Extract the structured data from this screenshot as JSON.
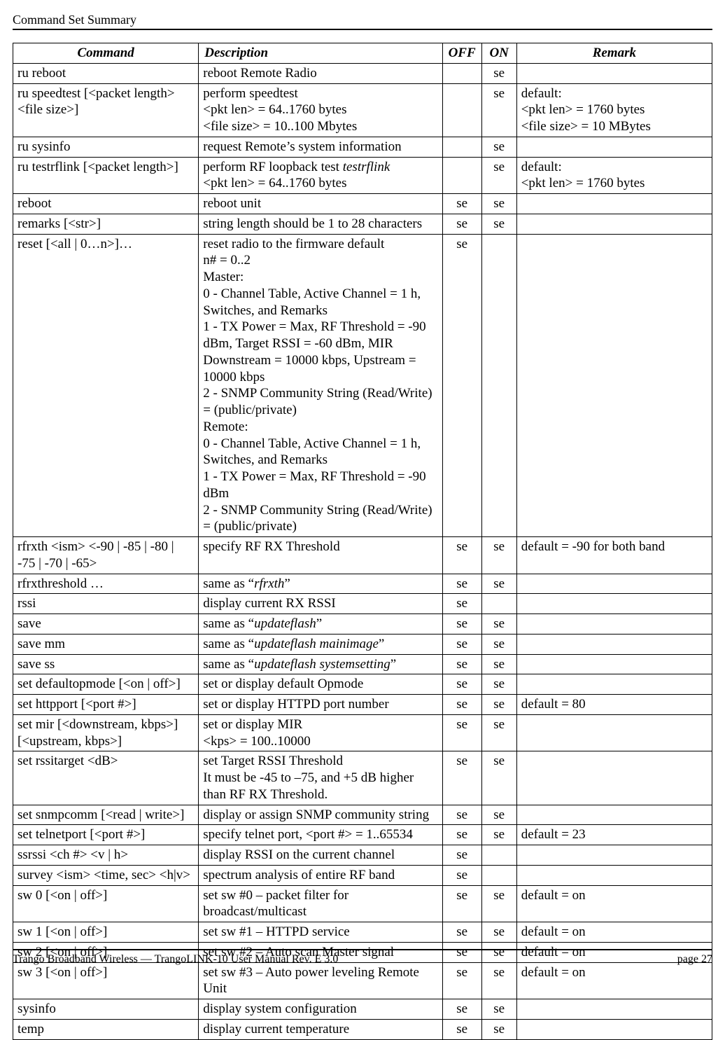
{
  "header": {
    "title": "Command Set Summary"
  },
  "footer": {
    "left": "Trango Broadband Wireless — TrangoLINK-10 User Manual Rev. E 3.0",
    "right": "page 27"
  },
  "columns": {
    "command": "Command",
    "description": "Description",
    "off": "OFF",
    "on": "ON",
    "remark": "Remark"
  },
  "rows": [
    {
      "command": "ru reboot",
      "description_parts": [
        {
          "text": "reboot Remote Radio"
        }
      ],
      "off": "",
      "on": "se",
      "remark_parts": []
    },
    {
      "command": "ru speedtest  [<packet length> <file size>]",
      "description_parts": [
        {
          "text": "perform speedtest"
        },
        {
          "br": true
        },
        {
          "text": "<pkt len> = 64..1760 bytes"
        },
        {
          "br": true
        },
        {
          "text": "<file size> = 10..100 Mbytes"
        }
      ],
      "off": "",
      "on": "se",
      "remark_parts": [
        {
          "text": "default:"
        },
        {
          "br": true
        },
        {
          "text": "<pkt len> = 1760 bytes"
        },
        {
          "br": true
        },
        {
          "text": "<file size> = 10 MBytes"
        }
      ]
    },
    {
      "command": "ru sysinfo",
      "description_parts": [
        {
          "text": "request Remote’s system information"
        }
      ],
      "off": "",
      "on": "se",
      "remark_parts": []
    },
    {
      "command": "ru testrflink [<packet length>]",
      "description_parts": [
        {
          "text": "perform RF loopback test "
        },
        {
          "text": "testrflink",
          "ital": true
        },
        {
          "br": true
        },
        {
          "text": "<pkt len> = 64..1760 bytes"
        }
      ],
      "off": "",
      "on": "se",
      "remark_parts": [
        {
          "text": "default:"
        },
        {
          "br": true
        },
        {
          "text": "<pkt len> = 1760 bytes"
        }
      ]
    },
    {
      "command": "reboot",
      "description_parts": [
        {
          "text": "reboot unit"
        }
      ],
      "off": "se",
      "on": "se",
      "remark_parts": []
    },
    {
      "command": "remarks [<str>]",
      "description_parts": [
        {
          "text": "string length should be 1 to 28 characters"
        }
      ],
      "off": "se",
      "on": "se",
      "remark_parts": []
    },
    {
      "command": "reset [<all | 0…n>]…",
      "description_parts": [
        {
          "text": "reset radio to the firmware default"
        },
        {
          "br": true
        },
        {
          "text": "n# = 0..2"
        },
        {
          "br": true
        },
        {
          "text": "Master:"
        },
        {
          "br": true
        },
        {
          "text": "0 - Channel Table, Active Channel = 1 h, Switches, and Remarks"
        },
        {
          "br": true
        },
        {
          "text": "1 - TX Power = Max, RF Threshold = -90 dBm, Target RSSI = -60 dBm, MIR Downstream = 10000 kbps, Upstream = 10000 kbps"
        },
        {
          "br": true
        },
        {
          "text": "2 - SNMP Community String (Read/Write) = (public/private)"
        },
        {
          "br": true
        },
        {
          "text": "Remote:"
        },
        {
          "br": true
        },
        {
          "text": "0 - Channel Table, Active Channel = 1 h, Switches, and Remarks"
        },
        {
          "br": true
        },
        {
          "text": "1 - TX Power = Max, RF Threshold = -90 dBm"
        },
        {
          "br": true
        },
        {
          "text": "2 - SNMP Community String (Read/Write) = (public/private)"
        }
      ],
      "off": "se",
      "on": "",
      "remark_parts": []
    },
    {
      "command": "rfrxth <ism> <-90 | -85 | -80 | -75 | -70 | -65>",
      "description_parts": [
        {
          "text": "specify RF RX Threshold"
        }
      ],
      "off": "se",
      "on": "se",
      "remark_parts": [
        {
          "text": "default = -90 for both band"
        }
      ]
    },
    {
      "command": "rfrxthreshold …",
      "description_parts": [
        {
          "text": "same as “"
        },
        {
          "text": "rfrxth",
          "ital": true
        },
        {
          "text": "”"
        }
      ],
      "off": "se",
      "on": "se",
      "remark_parts": []
    },
    {
      "command": "rssi",
      "description_parts": [
        {
          "text": "display current RX RSSI"
        }
      ],
      "off": "se",
      "on": "",
      "remark_parts": []
    },
    {
      "command": "save",
      "description_parts": [
        {
          "text": "same as “"
        },
        {
          "text": "updateflash",
          "ital": true
        },
        {
          "text": "”"
        }
      ],
      "off": "se",
      "on": "se",
      "remark_parts": []
    },
    {
      "command": "save mm",
      "description_parts": [
        {
          "text": "same as “"
        },
        {
          "text": "updateflash mainimage",
          "ital": true
        },
        {
          "text": "”"
        }
      ],
      "off": "se",
      "on": "se",
      "remark_parts": []
    },
    {
      "command": "save ss",
      "description_parts": [
        {
          "text": "same as “"
        },
        {
          "text": "updateflash systemsetting",
          "ital": true
        },
        {
          "text": "”"
        }
      ],
      "off": "se",
      "on": "se",
      "remark_parts": []
    },
    {
      "command": "set defaultopmode [<on | off>]",
      "description_parts": [
        {
          "text": "set or display default Opmode"
        }
      ],
      "off": "se",
      "on": "se",
      "remark_parts": []
    },
    {
      "command": "set httpport [<port #>]",
      "description_parts": [
        {
          "text": "set or display HTTPD port number"
        }
      ],
      "off": "se",
      "on": "se",
      "remark_parts": [
        {
          "text": "default = 80"
        }
      ]
    },
    {
      "command": "set mir [<downstream, kbps>][<upstream, kbps>]",
      "description_parts": [
        {
          "text": "set or display MIR"
        },
        {
          "br": true
        },
        {
          "text": "<kps> = 100..10000"
        }
      ],
      "off": "se",
      "on": "se",
      "remark_parts": []
    },
    {
      "command": "set rssitarget <dB>",
      "description_parts": [
        {
          "text": "set Target RSSI Threshold"
        },
        {
          "br": true
        },
        {
          "text": "It must be -45 to –75, and +5 dB higher than RF RX Threshold."
        }
      ],
      "off": "se",
      "on": "se",
      "remark_parts": []
    },
    {
      "command": "set snmpcomm [<read | write>]",
      "description_parts": [
        {
          "text": "display or assign SNMP community string"
        }
      ],
      "off": "se",
      "on": "se",
      "remark_parts": []
    },
    {
      "command": "set telnetport [<port #>]",
      "description_parts": [
        {
          "text": "specify telnet port, <port #> = 1..65534"
        }
      ],
      "off": "se",
      "on": "se",
      "remark_parts": [
        {
          "text": "default = 23"
        }
      ]
    },
    {
      "command": "ssrssi <ch #> <v | h>",
      "description_parts": [
        {
          "text": "display RSSI on the current channel"
        }
      ],
      "off": "se",
      "on": "",
      "remark_parts": []
    },
    {
      "command": "survey <ism> <time, sec> <h|v>",
      "description_parts": [
        {
          "text": "spectrum analysis of entire RF band"
        }
      ],
      "off": "se",
      "on": "",
      "remark_parts": []
    },
    {
      "command": "sw 0 [<on | off>]",
      "description_parts": [
        {
          "text": "set sw #0 – packet filter for broadcast/multicast"
        }
      ],
      "off": "se",
      "on": "se",
      "remark_parts": [
        {
          "text": "default = on"
        }
      ]
    },
    {
      "command": "sw 1 [<on | off>]",
      "description_parts": [
        {
          "text": "set sw #1 – HTTPD service"
        }
      ],
      "off": "se",
      "on": "se",
      "remark_parts": [
        {
          "text": "default = on"
        }
      ]
    },
    {
      "command": "sw 2 [<on | off>]",
      "description_parts": [
        {
          "text": "set sw #2 – Auto scan Master signal"
        }
      ],
      "off": "se",
      "on": "se",
      "remark_parts": [
        {
          "text": "default = on"
        }
      ]
    },
    {
      "command": "sw 3 [<on | off>]",
      "description_parts": [
        {
          "text": "set sw #3 – Auto power leveling Remote Unit"
        }
      ],
      "off": "se",
      "on": "se",
      "remark_parts": [
        {
          "text": "default = on"
        }
      ]
    },
    {
      "command": "sysinfo",
      "description_parts": [
        {
          "text": "display system configuration"
        }
      ],
      "off": "se",
      "on": "se",
      "remark_parts": []
    },
    {
      "command": "temp",
      "description_parts": [
        {
          "text": "display current temperature"
        }
      ],
      "off": "se",
      "on": "se",
      "remark_parts": []
    }
  ]
}
